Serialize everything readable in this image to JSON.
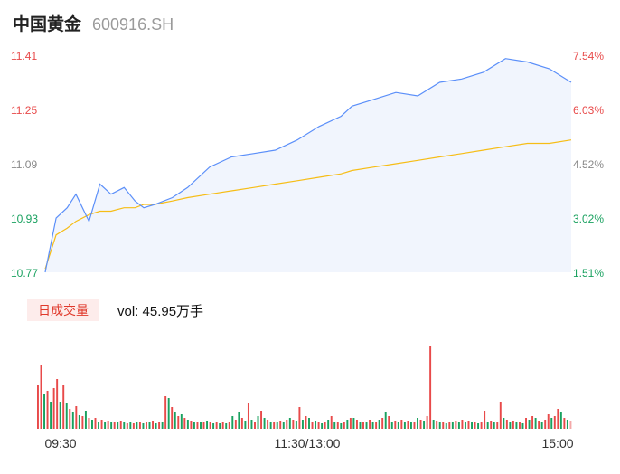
{
  "header": {
    "name": "中国黄金",
    "code": "600916.SH"
  },
  "volume_panel": {
    "badge": "日成交量",
    "vol_text": "vol: 45.95万手"
  },
  "colors": {
    "price_line": "#5b8ff9",
    "avg_line": "#f6bd16",
    "up": "#e84a4a",
    "down": "#19a15f",
    "neutral": "#888888"
  },
  "chart_data": [
    {
      "type": "line",
      "y_left_ticks": [
        "11.41",
        "11.25",
        "11.09",
        "10.93",
        "10.77"
      ],
      "y_right_ticks": [
        "7.54%",
        "6.03%",
        "4.52%",
        "3.02%",
        "1.51%"
      ],
      "x_ticks": [
        "09:30",
        "11:30/13:00",
        "15:00"
      ],
      "ylim": [
        10.77,
        11.41
      ],
      "x": [
        0,
        5,
        10,
        14,
        20,
        25,
        30,
        36,
        41,
        45,
        50,
        58,
        65,
        75,
        85,
        95,
        105,
        115,
        125,
        135,
        140,
        150,
        160,
        170,
        180,
        190,
        200,
        210,
        220,
        230,
        240
      ],
      "series": [
        {
          "values": [
            10.77,
            10.93,
            10.96,
            11.0,
            10.92,
            11.03,
            11.0,
            11.02,
            10.98,
            10.96,
            10.97,
            10.99,
            11.02,
            11.08,
            11.11,
            11.12,
            11.13,
            11.16,
            11.2,
            11.23,
            11.26,
            11.28,
            11.3,
            11.29,
            11.33,
            11.34,
            11.36,
            11.4,
            11.39,
            11.37,
            11.33
          ]
        },
        {
          "values": [
            10.78,
            10.88,
            10.9,
            10.92,
            10.94,
            10.95,
            10.95,
            10.96,
            10.96,
            10.97,
            10.97,
            10.98,
            10.99,
            11.0,
            11.01,
            11.02,
            11.03,
            11.04,
            11.05,
            11.06,
            11.07,
            11.08,
            11.09,
            11.1,
            11.11,
            11.12,
            11.13,
            11.14,
            11.15,
            11.15,
            11.16
          ]
        }
      ]
    },
    {
      "type": "bar",
      "title": "日成交量",
      "x_ticks": [
        "09:30",
        "11:30/13:00",
        "15:00"
      ],
      "volumes": [
        48,
        70,
        38,
        42,
        30,
        45,
        55,
        30,
        48,
        28,
        22,
        18,
        25,
        15,
        14,
        20,
        12,
        10,
        12,
        8,
        10,
        8,
        9,
        7,
        8,
        8,
        9,
        7,
        6,
        8,
        6,
        7,
        7,
        6,
        8,
        7,
        9,
        6,
        8,
        7,
        36,
        34,
        24,
        18,
        14,
        16,
        12,
        10,
        9,
        8,
        8,
        7,
        7,
        9,
        8,
        6,
        7,
        6,
        8,
        6,
        7,
        14,
        10,
        18,
        12,
        9,
        28,
        10,
        8,
        14,
        20,
        12,
        10,
        8,
        8,
        7,
        9,
        8,
        10,
        12,
        10,
        9,
        24,
        10,
        14,
        12,
        8,
        9,
        7,
        6,
        8,
        10,
        14,
        8,
        7,
        6,
        8,
        10,
        12,
        12,
        10,
        8,
        7,
        8,
        10,
        7,
        8,
        10,
        12,
        18,
        14,
        8,
        9,
        8,
        10,
        7,
        9,
        8,
        7,
        12,
        10,
        9,
        14,
        92,
        10,
        9,
        7,
        8,
        6,
        7,
        8,
        9,
        8,
        10,
        8,
        9,
        7,
        8,
        6,
        7,
        20,
        8,
        9,
        7,
        8,
        30,
        12,
        10,
        8,
        9,
        7,
        8,
        6,
        12,
        10,
        14,
        12,
        9,
        8,
        10,
        16,
        12,
        14,
        22,
        18,
        12,
        10,
        9
      ],
      "directions": [
        "u",
        "u",
        "d",
        "u",
        "d",
        "u",
        "u",
        "d",
        "u",
        "d",
        "u",
        "d",
        "u",
        "d",
        "u",
        "d",
        "u",
        "d",
        "u",
        "d",
        "u",
        "d",
        "u",
        "d",
        "u",
        "d",
        "u",
        "d",
        "u",
        "d",
        "u",
        "d",
        "u",
        "d",
        "u",
        "d",
        "u",
        "d",
        "u",
        "d",
        "u",
        "d",
        "u",
        "d",
        "u",
        "d",
        "u",
        "d",
        "u",
        "d",
        "u",
        "d",
        "u",
        "d",
        "u",
        "d",
        "u",
        "d",
        "u",
        "d",
        "u",
        "d",
        "u",
        "d",
        "u",
        "d",
        "u",
        "d",
        "u",
        "d",
        "u",
        "d",
        "u",
        "d",
        "u",
        "d",
        "u",
        "d",
        "u",
        "d",
        "u",
        "d",
        "u",
        "d",
        "u",
        "d",
        "u",
        "d",
        "u",
        "d",
        "u",
        "d",
        "u",
        "d",
        "u",
        "d",
        "u",
        "d",
        "u",
        "d",
        "u",
        "d",
        "u",
        "d",
        "u",
        "d",
        "u",
        "d",
        "u",
        "d",
        "u",
        "d",
        "u",
        "d",
        "u",
        "d",
        "u",
        "d",
        "u",
        "d",
        "u",
        "d",
        "u",
        "u",
        "d",
        "u",
        "d",
        "u",
        "d",
        "u",
        "d",
        "u",
        "d",
        "u",
        "d",
        "u",
        "d",
        "u",
        "d",
        "u",
        "u",
        "d",
        "u",
        "d",
        "u",
        "u",
        "d",
        "u",
        "d",
        "u",
        "d",
        "u",
        "d",
        "u",
        "d",
        "u",
        "d",
        "u",
        "d",
        "u",
        "u",
        "d",
        "u",
        "u",
        "d",
        "u",
        "d",
        "n"
      ]
    }
  ]
}
